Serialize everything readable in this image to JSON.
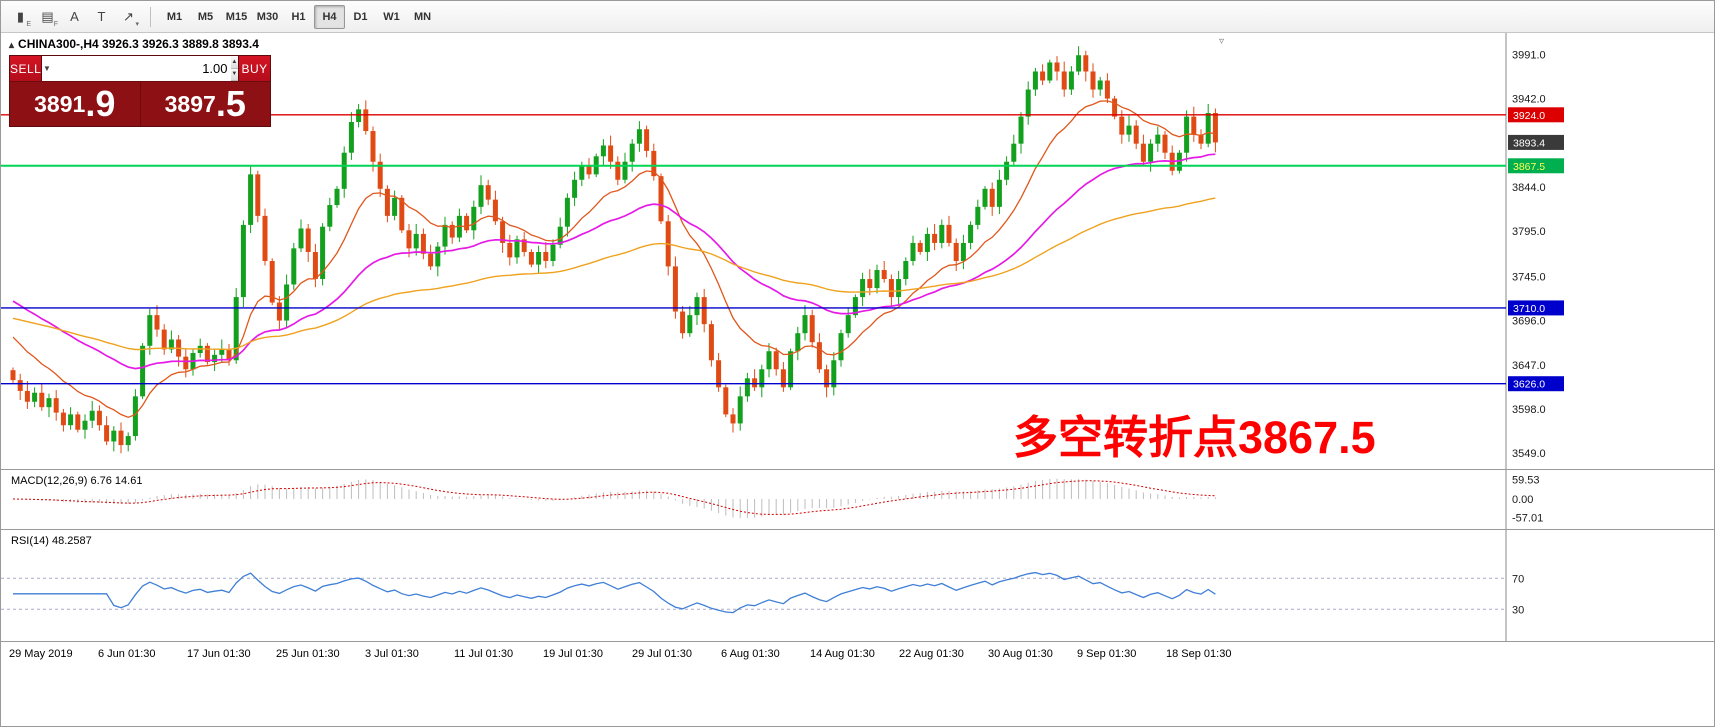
{
  "toolbar": {
    "icons": [
      {
        "name": "candle-chart-icon",
        "glyph": "▮",
        "sub": "E"
      },
      {
        "name": "indicator-grid-icon",
        "glyph": "▤",
        "sub": "F"
      },
      {
        "name": "insert-text-icon",
        "glyph": "A",
        "sub": ""
      },
      {
        "name": "text-label-icon",
        "glyph": "T",
        "sub": ""
      },
      {
        "name": "drawing-tools-icon",
        "glyph": "↗",
        "sub": "▾"
      }
    ],
    "timeframes": [
      "M1",
      "M5",
      "M15",
      "M30",
      "H1",
      "H4",
      "D1",
      "W1",
      "MN"
    ],
    "active_timeframe": "H4"
  },
  "chart": {
    "title": "CHINA300-,H4 3926.3 3926.3 3889.8 3893.4",
    "collapse_arrow": "▴",
    "shift_marker": "▿",
    "trade_panel": {
      "sell_label": "SELL",
      "buy_label": "BUY",
      "volume": "1.00",
      "sell_price_main": "3891",
      "sell_price_frac": ".9",
      "buy_price_main": "3897",
      "buy_price_frac": ".5"
    },
    "annotation": {
      "text": "多空转折点3867.5",
      "color": "#ff0000"
    },
    "colors": {
      "up": "#13a01e",
      "down": "#e04b15"
    },
    "y_ticks": [
      {
        "label": "3991.0",
        "value": 3991
      },
      {
        "label": "3942.0",
        "value": 3942
      },
      {
        "label": "3844.0",
        "value": 3844
      },
      {
        "label": "3795.0",
        "value": 3795
      },
      {
        "label": "3745.0",
        "value": 3745
      },
      {
        "label": "3696.0",
        "value": 3696
      },
      {
        "label": "3647.0",
        "value": 3647
      },
      {
        "label": "3598.0",
        "value": 3598
      },
      {
        "label": "3549.0",
        "value": 3549
      }
    ],
    "price_labels": [
      {
        "label": "3924.0",
        "value": 3924,
        "bg": "#dd0000",
        "fg": "#ffffff"
      },
      {
        "label": "3893.4",
        "value": 3893.4,
        "bg": "#3a3a3a",
        "fg": "#ffffff"
      },
      {
        "label": "3867.5",
        "value": 3867.5,
        "bg": "#00b050",
        "fg": "#ffff55"
      },
      {
        "label": "3710.0",
        "value": 3710,
        "bg": "#0000cc",
        "fg": "#ffffff"
      },
      {
        "label": "3626.0",
        "value": 3626,
        "bg": "#0000cc",
        "fg": "#ffffff"
      }
    ],
    "hlines": [
      {
        "value": 3924,
        "color": "#dd0000",
        "width": 1.4
      },
      {
        "value": 3867.5,
        "color": "#00d455",
        "width": 2
      },
      {
        "value": 3710,
        "color": "#0000cc",
        "width": 1.4
      },
      {
        "value": 3626,
        "color": "#0000cc",
        "width": 1.4
      }
    ],
    "mas": [
      {
        "period": 14,
        "seed": 3685,
        "color": "#e0571c",
        "width": 1.3
      },
      {
        "period": 40,
        "seed": 3722,
        "color": "#e61ae6",
        "width": 1.7
      },
      {
        "period": 90,
        "seed": 3700,
        "color": "#efa21f",
        "width": 1.4
      }
    ],
    "candles": {
      "open_first": 3641,
      "closes": [
        3630,
        3618,
        3606,
        3616,
        3600,
        3610,
        3594,
        3580,
        3592,
        3575,
        3585,
        3596,
        3580,
        3562,
        3574,
        3558,
        3568,
        3612,
        3668,
        3702,
        3686,
        3664,
        3675,
        3656,
        3642,
        3660,
        3668,
        3650,
        3658,
        3664,
        3652,
        3722,
        3802,
        3858,
        3812,
        3762,
        3716,
        3696,
        3736,
        3776,
        3798,
        3772,
        3742,
        3800,
        3824,
        3842,
        3882,
        3916,
        3930,
        3906,
        3872,
        3842,
        3812,
        3832,
        3796,
        3776,
        3792,
        3770,
        3756,
        3778,
        3802,
        3788,
        3812,
        3796,
        3822,
        3846,
        3830,
        3806,
        3782,
        3766,
        3786,
        3772,
        3758,
        3772,
        3762,
        3780,
        3800,
        3832,
        3852,
        3868,
        3858,
        3878,
        3890,
        3872,
        3852,
        3872,
        3892,
        3908,
        3884,
        3856,
        3806,
        3756,
        3706,
        3682,
        3702,
        3722,
        3692,
        3652,
        3622,
        3592,
        3582,
        3612,
        3632,
        3622,
        3642,
        3662,
        3642,
        3622,
        3662,
        3682,
        3702,
        3672,
        3642,
        3622,
        3652,
        3682,
        3702,
        3722,
        3742,
        3732,
        3752,
        3742,
        3722,
        3742,
        3762,
        3782,
        3772,
        3792,
        3782,
        3802,
        3782,
        3762,
        3782,
        3802,
        3822,
        3842,
        3822,
        3852,
        3872,
        3892,
        3922,
        3952,
        3972,
        3962,
        3982,
        3972,
        3952,
        3972,
        3990,
        3972,
        3952,
        3962,
        3942,
        3922,
        3902,
        3912,
        3892,
        3872,
        3892,
        3902,
        3882,
        3862,
        3882,
        3922,
        3902,
        3892,
        3926,
        3893.4
      ]
    }
  },
  "macd": {
    "label": "MACD(12,26,9) 6.76 14.61",
    "fast": 12,
    "slow": 26,
    "signal": 9,
    "hist_color": "#bdbdbd",
    "signal_color": "#d40000",
    "y_ticks": [
      {
        "label": "59.53",
        "value": 59.53
      },
      {
        "label": "0.00",
        "value": 0
      },
      {
        "label": "-57.01",
        "value": -57.01
      }
    ]
  },
  "rsi": {
    "label": "RSI(14) 48.2587",
    "period": 14,
    "color": "#3f7fd6",
    "levels": [
      70,
      30
    ],
    "y_ticks": [
      {
        "label": "70",
        "value": 70
      },
      {
        "label": "30",
        "value": 30
      }
    ]
  },
  "time_axis": {
    "labels": [
      "29 May 2019",
      "6 Jun 01:30",
      "17 Jun 01:30",
      "25 Jun 01:30",
      "3 Jul 01:30",
      "11 Jul 01:30",
      "19 Jul 01:30",
      "29 Jul 01:30",
      "6 Aug 01:30",
      "14 Aug 01:30",
      "22 Aug 01:30",
      "30 Aug 01:30",
      "9 Sep 01:30",
      "18 Sep 01:30"
    ]
  }
}
